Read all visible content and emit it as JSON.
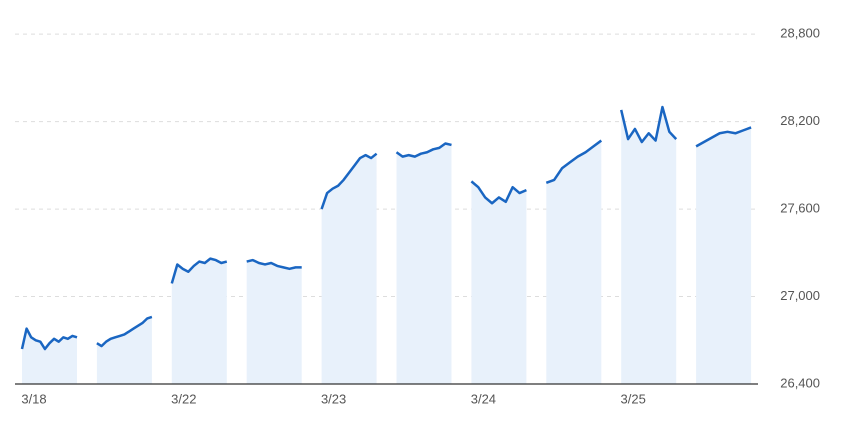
{
  "chart_data": {
    "type": "line",
    "categories": [
      "3/18",
      null,
      "3/22",
      null,
      "3/23",
      null,
      "3/24",
      null,
      "3/25",
      null
    ],
    "values": [
      [
        26640,
        26780,
        26720,
        26700,
        26690,
        26640,
        26680,
        26710,
        26690,
        26720,
        26710,
        26730,
        26720
      ],
      [
        26680,
        26660,
        26690,
        26710,
        26720,
        26730,
        26740,
        26760,
        26780,
        26800,
        26820,
        26850,
        26860
      ],
      [
        27090,
        27220,
        27190,
        27170,
        27210,
        27240,
        27230,
        27260,
        27250,
        27230,
        27240
      ],
      [
        27240,
        27250,
        27230,
        27220,
        27230,
        27210,
        27200,
        27190,
        27200,
        27200
      ],
      [
        27600,
        27710,
        27740,
        27760,
        27800,
        27850,
        27900,
        27950,
        27970,
        27950,
        27980
      ],
      [
        27990,
        27960,
        27970,
        27960,
        27980,
        27990,
        28010,
        28020,
        28050,
        28040
      ],
      [
        27790,
        27750,
        27680,
        27640,
        27680,
        27650,
        27750,
        27710,
        27730
      ],
      [
        27780,
        27800,
        27880,
        27920,
        27960,
        27990,
        28030,
        28070
      ],
      [
        28280,
        28080,
        28150,
        28060,
        28120,
        28070,
        28300,
        28130,
        28080
      ],
      [
        28030,
        28060,
        28090,
        28120,
        28130,
        28120,
        28140,
        28160
      ]
    ],
    "color": "#1a66c2",
    "fill": "#e8f1fb",
    "ylim": [
      26400,
      29000
    ],
    "yticks": [
      {
        "value": 26400,
        "label": "26,400"
      },
      {
        "value": 27000,
        "label": "27,000"
      },
      {
        "value": 27600,
        "label": "27,600"
      },
      {
        "value": 28200,
        "label": "28,200"
      },
      {
        "value": 28800,
        "label": "28,800"
      }
    ],
    "grid": true
  }
}
